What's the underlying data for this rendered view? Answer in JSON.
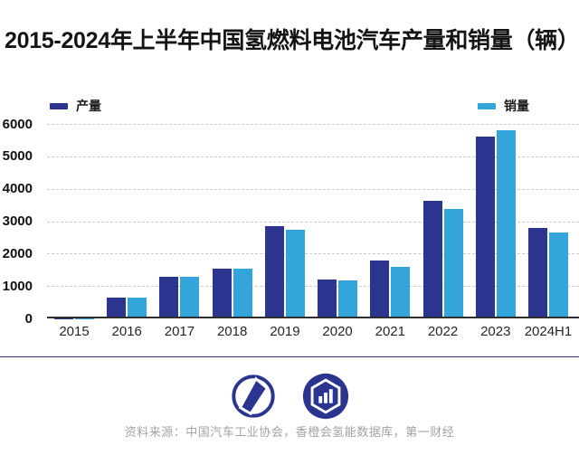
{
  "title": "2015-2024年上半年中国氢燃料电池汽车产量和销量（辆）",
  "source": "资料来源：中国汽车工业协会，香橙会氢能数据库，第一财经",
  "colors": {
    "production": "#2B3590",
    "sales": "#34A5DB",
    "grid": "#cccccc",
    "axis": "#2e2e2e",
    "divider": "#33388f",
    "logo": "#2B3590",
    "title_text": "#141414",
    "source_text": "#a3a3a3"
  },
  "icons": [
    "yicai-compass-logo",
    "hexagon-barchart-logo"
  ],
  "chart_data": {
    "type": "bar",
    "title": "2015-2024年上半年中国氢燃料电池汽车产量和销量（辆）",
    "categories": [
      "2015",
      "2016",
      "2017",
      "2018",
      "2019",
      "2020",
      "2021",
      "2022",
      "2023",
      "2024H1"
    ],
    "series": [
      {
        "name": "产量",
        "color": "#2B3590",
        "values": [
          10,
          629,
          1275,
          1527,
          2833,
          1199,
          1777,
          3626,
          5600,
          2790
        ]
      },
      {
        "name": "销量",
        "color": "#34A5DB",
        "values": [
          10,
          629,
          1272,
          1527,
          2737,
          1177,
          1586,
          3367,
          5805,
          2644
        ]
      }
    ],
    "xlabel": "",
    "ylabel": "",
    "ylim": [
      0,
      6000
    ],
    "yticks": [
      0,
      1000,
      2000,
      3000,
      4000,
      5000,
      6000
    ],
    "grid": "horizontal-dashed",
    "legend_position": "top"
  }
}
